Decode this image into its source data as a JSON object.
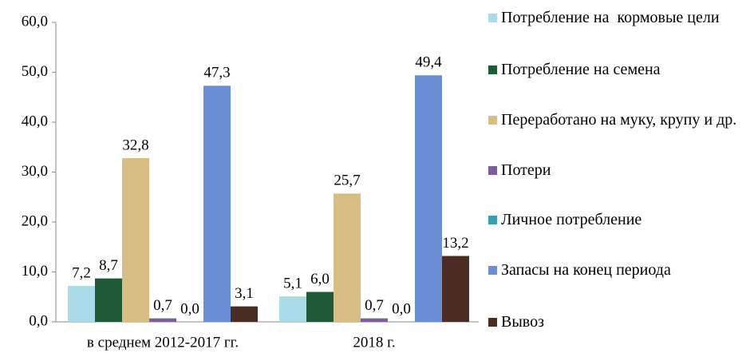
{
  "chart_data": {
    "type": "bar",
    "categories": [
      "в среднем 2012-2017 гг.",
      "2018 г."
    ],
    "ylim": [
      0,
      60
    ],
    "yticks": [
      {
        "value": 0,
        "label": "0,0"
      },
      {
        "value": 10,
        "label": "10,0"
      },
      {
        "value": 20,
        "label": "20,0"
      },
      {
        "value": 30,
        "label": "30,0"
      },
      {
        "value": 40,
        "label": "40,0"
      },
      {
        "value": 50,
        "label": "50,0"
      },
      {
        "value": 60,
        "label": "60,0"
      }
    ],
    "series": [
      {
        "name": "Потребление на  кормовые цели",
        "color": "#a9dbe8",
        "values": [
          7.2,
          5.1
        ],
        "value_labels": [
          "7,2",
          "5,1"
        ]
      },
      {
        "name": "Потребление на семена",
        "color": "#1f5a38",
        "values": [
          8.7,
          6.0
        ],
        "value_labels": [
          "8,7",
          "6,0"
        ]
      },
      {
        "name": "Переработано на муку, крупу и др.",
        "color": "#d8bd85",
        "values": [
          32.8,
          25.7
        ],
        "value_labels": [
          "32,8",
          "25,7"
        ]
      },
      {
        "name": "Потери",
        "color": "#7b5e9c",
        "values": [
          0.7,
          0.7
        ],
        "value_labels": [
          "0,7",
          "0,7"
        ]
      },
      {
        "name": "Личное потребление",
        "color": "#3b9fb0",
        "values": [
          0.0,
          0.0
        ],
        "value_labels": [
          "0,0",
          "0,0"
        ]
      },
      {
        "name": "Запасы на конец периода",
        "color": "#6b8fd6",
        "values": [
          47.3,
          49.4
        ],
        "value_labels": [
          "47,3",
          "49,4"
        ]
      },
      {
        "name": "Вывоз",
        "color": "#4a2c22",
        "values": [
          3.1,
          13.2
        ],
        "value_labels": [
          "3,1",
          "13,2"
        ]
      }
    ]
  }
}
